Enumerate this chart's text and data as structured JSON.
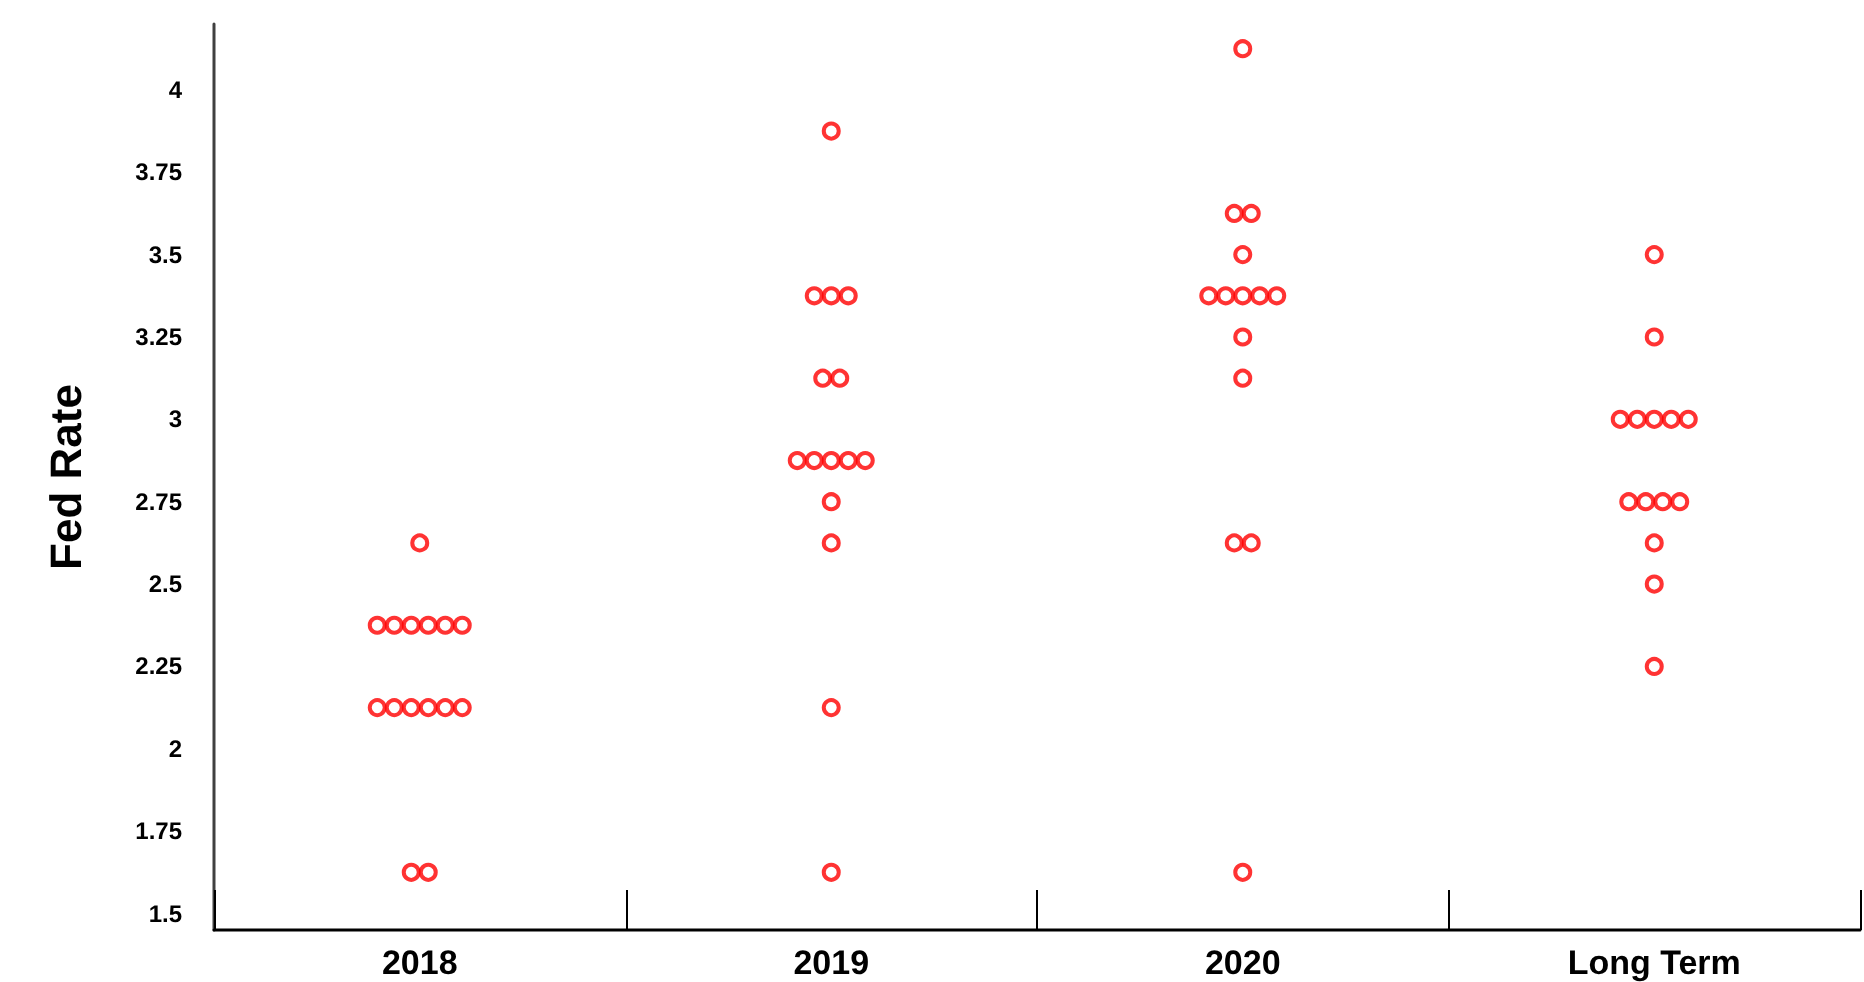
{
  "chart_data": {
    "type": "scatter",
    "ylabel": "Fed Rate",
    "categories": [
      "2018",
      "2019",
      "2020",
      "Long Term"
    ],
    "series": [
      {
        "color": "#ff0000",
        "values": [
          2.625,
          3.875,
          4.125,
          3.5
        ]
      },
      {
        "color": "#ff0000",
        "values": [
          2.375,
          3.375,
          3.625,
          3.25
        ]
      },
      {
        "color": "#ff0000",
        "values": [
          2.375,
          3.375,
          3.625,
          3
        ]
      },
      {
        "color": "#ff0000",
        "values": [
          2.375,
          3.375,
          3.5,
          3
        ]
      },
      {
        "color": "#ff0000",
        "values": [
          2.375,
          3.125,
          3.375,
          3
        ]
      },
      {
        "color": "#ff0000",
        "values": [
          2.375,
          3.125,
          3.375,
          3
        ]
      },
      {
        "color": "#ff0000",
        "values": [
          2.375,
          2.875,
          3.375,
          3
        ]
      },
      {
        "color": "#ff0000",
        "values": [
          2.125,
          2.875,
          3.375,
          2.75
        ]
      },
      {
        "color": "#ff0000",
        "values": [
          2.125,
          2.875,
          3.375,
          2.75
        ]
      },
      {
        "color": "#ff0000",
        "values": [
          2.125,
          2.875,
          3.25,
          2.75
        ]
      },
      {
        "color": "#ff0000",
        "values": [
          2.125,
          2.875,
          3.125,
          2.75
        ]
      },
      {
        "color": "#ff0000",
        "values": [
          2.125,
          2.75,
          2.625,
          2.625
        ]
      },
      {
        "color": "#ff0000",
        "values": [
          2.125,
          2.625,
          2.625,
          2.5
        ]
      },
      {
        "color": "#ff0000",
        "values": [
          1.625,
          2.125,
          1.625,
          2.25
        ]
      },
      {
        "color": "#ff0000",
        "values": [
          1.625,
          1.625,
          null,
          null
        ]
      }
    ],
    "ylim": [
      1.45,
      4.2
    ],
    "yticks": [
      1.5,
      1.75,
      2,
      2.25,
      2.5,
      2.75,
      3,
      3.25,
      3.5,
      3.75,
      4
    ],
    "marker": "circle",
    "grid": false
  }
}
